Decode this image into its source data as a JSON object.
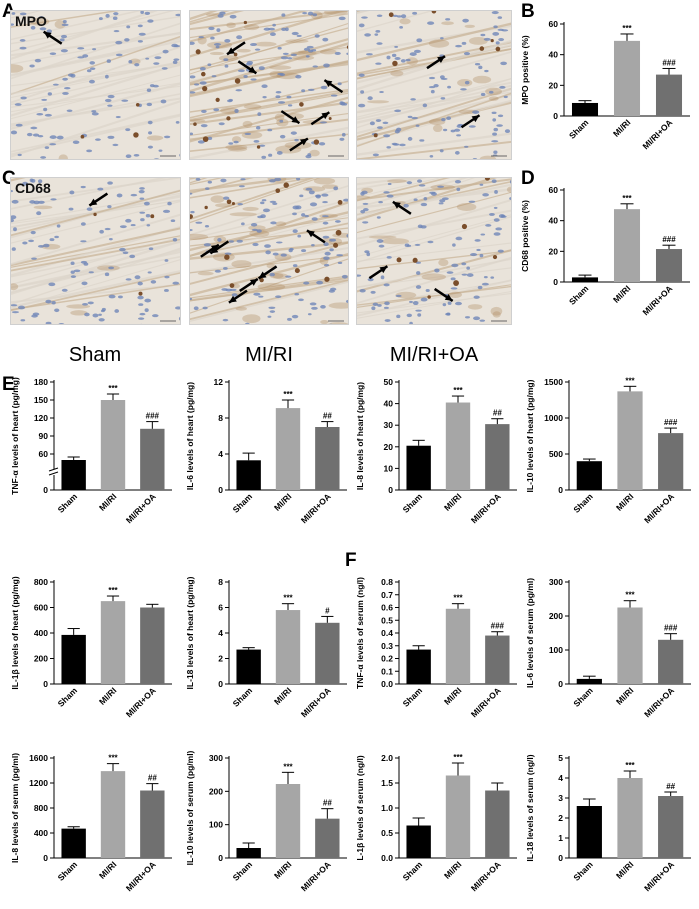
{
  "panels": {
    "a": "A",
    "b": "B",
    "c": "C",
    "d": "D",
    "e": "E",
    "f": "F"
  },
  "micro": {
    "mpo_label": "MPO",
    "cd68_label": "CD68",
    "conditions": [
      "Sham",
      "MI/RI",
      "MI/RI+OA"
    ]
  },
  "colors": {
    "sham": "#000000",
    "miri": "#a6a6a6",
    "miri_oa": "#707070",
    "tissue_bg": "#e9e3da",
    "nuclei": "#6f86b8",
    "stain": "#7a4e2b"
  },
  "chart_data": [
    {
      "id": "mpo",
      "type": "bar",
      "categories": [
        "Sham",
        "MI/RI",
        "MI/RI+OA"
      ],
      "values": [
        8.5,
        49,
        27
      ],
      "errors": [
        1.5,
        4.5,
        4
      ],
      "sig": [
        "",
        "***",
        "###"
      ],
      "ylabel": "MPO positive (%)",
      "ylim": [
        0,
        60
      ],
      "ticks": [
        0,
        20,
        40,
        60
      ]
    },
    {
      "id": "cd68",
      "type": "bar",
      "categories": [
        "Sham",
        "MI/RI",
        "MI/RI+OA"
      ],
      "values": [
        3,
        47.5,
        21.5
      ],
      "errors": [
        1.5,
        3.5,
        2.5
      ],
      "sig": [
        "",
        "***",
        "###"
      ],
      "ylabel": "CD68 positive (%)",
      "ylim": [
        0,
        60
      ],
      "ticks": [
        0,
        20,
        40,
        60
      ]
    },
    {
      "id": "tnf_heart",
      "type": "bar",
      "categories": [
        "Sham",
        "MI/RI",
        "MI/RI+OA"
      ],
      "values": [
        50,
        150,
        102
      ],
      "errors": [
        5,
        10,
        12
      ],
      "sig": [
        "",
        "***",
        "###"
      ],
      "ylabel": "TNF-α levels of heart (pg/mg)",
      "ylim": [
        0,
        180
      ],
      "ticks": [
        0,
        60,
        90,
        120,
        150,
        180
      ],
      "tick_labels": [
        "0",
        "60",
        "90",
        "120",
        "150",
        "180"
      ],
      "axis_break": true
    },
    {
      "id": "il6_heart",
      "type": "bar",
      "categories": [
        "Sham",
        "MI/RI",
        "MI/RI+OA"
      ],
      "values": [
        3.3,
        9.1,
        7.0
      ],
      "errors": [
        0.8,
        0.9,
        0.6
      ],
      "sig": [
        "",
        "***",
        "##"
      ],
      "ylabel": "IL-6 levels of heart (pg/mg)",
      "ylim": [
        0,
        12
      ],
      "ticks": [
        0,
        4,
        8,
        12
      ]
    },
    {
      "id": "il8_heart",
      "type": "bar",
      "categories": [
        "Sham",
        "MI/RI",
        "MI/RI+OA"
      ],
      "values": [
        20.5,
        40.5,
        30.5
      ],
      "errors": [
        2.5,
        3,
        2.5
      ],
      "sig": [
        "",
        "***",
        "##"
      ],
      "ylabel": "IL-8 levels of heart (pg/mg)",
      "ylim": [
        0,
        50
      ],
      "ticks": [
        0,
        10,
        20,
        30,
        40,
        50
      ]
    },
    {
      "id": "il10_heart",
      "type": "bar",
      "categories": [
        "Sham",
        "MI/RI",
        "MI/RI+OA"
      ],
      "values": [
        400,
        1370,
        790
      ],
      "errors": [
        30,
        70,
        70
      ],
      "sig": [
        "",
        "***",
        "###"
      ],
      "ylabel": "IL-10 levels of heart (pg/mg)",
      "ylim": [
        0,
        1500
      ],
      "ticks": [
        0,
        500,
        1000,
        1500
      ]
    },
    {
      "id": "il1b_heart",
      "type": "bar",
      "categories": [
        "Sham",
        "MI/RI",
        "MI/RI+OA"
      ],
      "values": [
        385,
        650,
        600
      ],
      "errors": [
        50,
        40,
        25
      ],
      "sig": [
        "",
        "***",
        ""
      ],
      "ylabel": "IL-1β levels of heart (pg/mg)",
      "ylim": [
        0,
        800
      ],
      "ticks": [
        0,
        200,
        400,
        600,
        800
      ]
    },
    {
      "id": "il18_heart",
      "type": "bar",
      "categories": [
        "Sham",
        "MI/RI",
        "MI/RI+OA"
      ],
      "values": [
        2.7,
        5.8,
        4.8
      ],
      "errors": [
        0.15,
        0.5,
        0.5
      ],
      "sig": [
        "",
        "***",
        "#"
      ],
      "ylabel": "IL-18 levels of heart (pg/mg)",
      "ylim": [
        0,
        8
      ],
      "ticks": [
        0,
        2,
        4,
        6,
        8
      ]
    },
    {
      "id": "tnf_serum",
      "type": "bar",
      "categories": [
        "Sham",
        "MI/RI",
        "MI/RI+OA"
      ],
      "values": [
        0.27,
        0.59,
        0.38
      ],
      "errors": [
        0.03,
        0.04,
        0.03
      ],
      "sig": [
        "",
        "***",
        "###"
      ],
      "ylabel": "TNF-α levels of serum (ng/l)",
      "ylim": [
        0,
        0.8
      ],
      "ticks": [
        0,
        0.1,
        0.2,
        0.3,
        0.4,
        0.5,
        0.6,
        0.7,
        0.8
      ],
      "tick_labels": [
        "0.0",
        "0.1",
        "0.2",
        "0.3",
        "0.4",
        "0.5",
        "0.6",
        "0.7",
        "0.8"
      ]
    },
    {
      "id": "il6_serum",
      "type": "bar",
      "categories": [
        "Sham",
        "MI/RI",
        "MI/RI+OA"
      ],
      "values": [
        15,
        225,
        130
      ],
      "errors": [
        8,
        20,
        18
      ],
      "sig": [
        "",
        "***",
        "###"
      ],
      "ylabel": "IL-6 levels of serum (pg/ml)",
      "ylim": [
        0,
        300
      ],
      "ticks": [
        0,
        100,
        200,
        300
      ]
    },
    {
      "id": "il8_serum",
      "type": "bar",
      "categories": [
        "Sham",
        "MI/RI",
        "MI/RI+OA"
      ],
      "values": [
        470,
        1390,
        1080
      ],
      "errors": [
        30,
        120,
        110
      ],
      "sig": [
        "",
        "***",
        "##"
      ],
      "ylabel": "IL-8 levels of serum (pg/ml)",
      "ylim": [
        0,
        1600
      ],
      "ticks": [
        0,
        400,
        800,
        1200,
        1600
      ]
    },
    {
      "id": "il10_serum",
      "type": "bar",
      "categories": [
        "Sham",
        "MI/RI",
        "MI/RI+OA"
      ],
      "values": [
        30,
        222,
        118
      ],
      "errors": [
        15,
        35,
        30
      ],
      "sig": [
        "",
        "***",
        "##"
      ],
      "ylabel": "IL-10 levels of serum (pg/ml)",
      "ylim": [
        0,
        300
      ],
      "ticks": [
        0,
        100,
        200,
        300
      ]
    },
    {
      "id": "il1b_serum",
      "type": "bar",
      "categories": [
        "Sham",
        "MI/RI",
        "MI/RI+OA"
      ],
      "values": [
        0.65,
        1.65,
        1.35
      ],
      "errors": [
        0.15,
        0.25,
        0.15
      ],
      "sig": [
        "",
        "***",
        ""
      ],
      "ylabel": "L-1β levels of serum (ng/l)",
      "ylim": [
        0,
        2.0
      ],
      "ticks": [
        0,
        0.5,
        1.0,
        1.5,
        2.0
      ],
      "tick_labels": [
        "0.0",
        "0.5",
        "1.0",
        "1.5",
        "2.0"
      ]
    },
    {
      "id": "il18_serum",
      "type": "bar",
      "categories": [
        "Sham",
        "MI/RI",
        "MI/RI+OA"
      ],
      "values": [
        2.6,
        4.0,
        3.1
      ],
      "errors": [
        0.35,
        0.35,
        0.2
      ],
      "sig": [
        "",
        "***",
        "##"
      ],
      "ylabel": "IL-18 levels of serum (ng/l)",
      "ylim": [
        0,
        5
      ],
      "ticks": [
        0,
        1,
        2,
        3,
        4,
        5
      ]
    }
  ]
}
